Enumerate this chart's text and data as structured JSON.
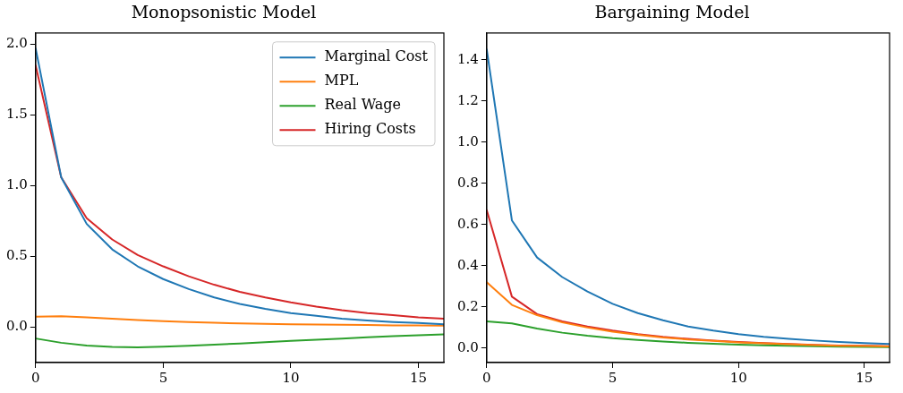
{
  "chart_data": [
    {
      "type": "line",
      "title": "Monopsonistic Model",
      "x": [
        0,
        1,
        2,
        3,
        4,
        5,
        6,
        7,
        8,
        9,
        10,
        11,
        12,
        13,
        14,
        15,
        16
      ],
      "xlim": [
        0,
        16
      ],
      "xticks": [
        0,
        5,
        10,
        15
      ],
      "ylim": [
        -0.25,
        2.08
      ],
      "yticks": [
        {
          "value": 0,
          "label": "0.0"
        },
        0.5,
        {
          "value": 1,
          "label": "1.0"
        },
        1.5,
        {
          "value": 2,
          "label": "2.0"
        }
      ],
      "grid": false,
      "legend": "top right",
      "marker": "none",
      "line_style": "solid",
      "series": [
        {
          "name": "Marginal Cost",
          "color": "#1f77b4",
          "values": [
            1.97,
            1.06,
            0.73,
            0.55,
            0.43,
            0.34,
            0.27,
            0.21,
            0.165,
            0.13,
            0.1,
            0.08,
            0.06,
            0.047,
            0.037,
            0.03,
            0.02
          ]
        },
        {
          "name": "MPL",
          "color": "#ff7f0e",
          "values": [
            0.075,
            0.078,
            0.07,
            0.06,
            0.05,
            0.042,
            0.036,
            0.031,
            0.027,
            0.024,
            0.021,
            0.019,
            0.017,
            0.015,
            0.013,
            0.012,
            0.011
          ]
        },
        {
          "name": "Real Wage",
          "color": "#2ca02c",
          "values": [
            -0.08,
            -0.11,
            -0.13,
            -0.14,
            -0.142,
            -0.138,
            -0.132,
            -0.124,
            -0.115,
            -0.106,
            -0.097,
            -0.088,
            -0.08,
            -0.072,
            -0.064,
            -0.057,
            -0.05
          ]
        },
        {
          "name": "Hiring Costs",
          "color": "#d62728",
          "values": [
            1.85,
            1.06,
            0.77,
            0.62,
            0.51,
            0.43,
            0.36,
            0.3,
            0.25,
            0.21,
            0.175,
            0.145,
            0.12,
            0.1,
            0.085,
            0.07,
            0.06
          ]
        }
      ]
    },
    {
      "type": "line",
      "title": "Bargaining Model",
      "x": [
        0,
        1,
        2,
        3,
        4,
        5,
        6,
        7,
        8,
        9,
        10,
        11,
        12,
        13,
        14,
        15,
        16
      ],
      "xlim": [
        0,
        16
      ],
      "xticks": [
        0,
        5,
        10,
        15
      ],
      "ylim": [
        -0.07,
        1.53
      ],
      "yticks": [
        {
          "value": 0,
          "label": "0.0"
        },
        0.2,
        0.4,
        0.6,
        0.8,
        {
          "value": 1,
          "label": "1.0"
        },
        1.2,
        1.4
      ],
      "grid": false,
      "legend": false,
      "marker": "none",
      "line_style": "solid",
      "series": [
        {
          "color": "#1f77b4",
          "values": [
            1.45,
            0.62,
            0.44,
            0.345,
            0.275,
            0.215,
            0.17,
            0.135,
            0.105,
            0.085,
            0.068,
            0.055,
            0.045,
            0.037,
            0.03,
            0.025,
            0.02
          ]
        },
        {
          "color": "#ff7f0e",
          "values": [
            0.32,
            0.21,
            0.16,
            0.125,
            0.1,
            0.08,
            0.065,
            0.052,
            0.042,
            0.035,
            0.028,
            0.023,
            0.019,
            0.015,
            0.012,
            0.01,
            0.008
          ]
        },
        {
          "color": "#2ca02c",
          "values": [
            0.13,
            0.12,
            0.095,
            0.075,
            0.06,
            0.048,
            0.04,
            0.032,
            0.026,
            0.021,
            0.017,
            0.014,
            0.011,
            0.009,
            0.007,
            0.006,
            0.005
          ]
        },
        {
          "color": "#d62728",
          "values": [
            0.67,
            0.25,
            0.165,
            0.13,
            0.105,
            0.085,
            0.068,
            0.055,
            0.045,
            0.037,
            0.03,
            0.025,
            0.02,
            0.016,
            0.013,
            0.011,
            0.009
          ]
        }
      ]
    }
  ]
}
